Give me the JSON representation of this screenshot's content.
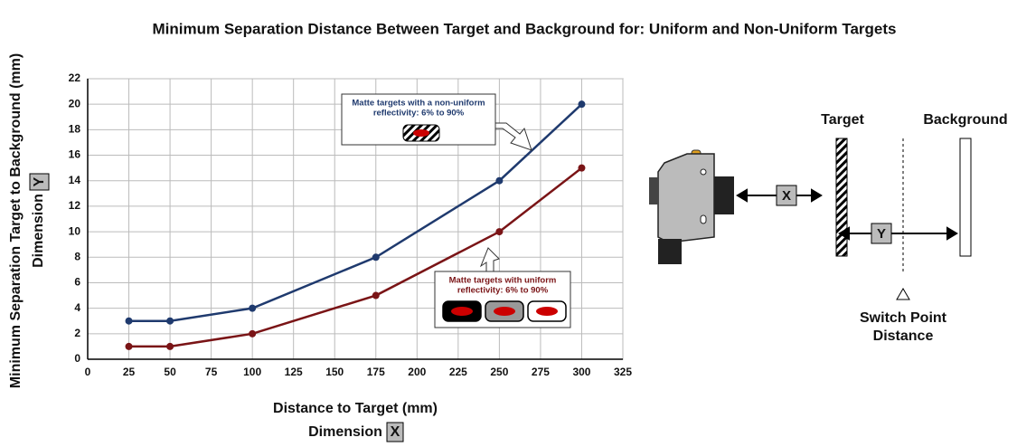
{
  "chart_data": {
    "type": "line",
    "title": "Minimum Separation Distance Between Target and Background for: Uniform and Non-Uniform Targets",
    "xlabel": "Distance to Target (mm)",
    "xlabel2": "Dimension",
    "xlabel_box": "X",
    "ylabel": "Minimum Separation Target to Background (mm)",
    "ylabel2": "Dimension",
    "ylabel_box": "Y",
    "x": [
      25,
      50,
      100,
      175,
      250,
      300
    ],
    "series": [
      {
        "color": "#1f3a6e",
        "values": [
          3,
          3,
          4,
          8,
          14,
          20
        ]
      },
      {
        "color": "#7a1416",
        "values": [
          1,
          1,
          2,
          5,
          10,
          15
        ]
      }
    ],
    "annotations": [
      {
        "lines": [
          "Matte targets with a non-uniform",
          "reflectivity: 6% to 90%"
        ],
        "color": "#1f3a6e"
      },
      {
        "lines": [
          "Matte targets with uniform",
          "reflectivity: 6% to 90%"
        ],
        "color": "#7a1416"
      }
    ],
    "xlim": [
      0,
      325
    ],
    "xticks": [
      0,
      25,
      50,
      75,
      100,
      125,
      150,
      175,
      200,
      225,
      250,
      275,
      300,
      325
    ],
    "ylim": [
      0,
      22
    ],
    "yticks": [
      0,
      2,
      4,
      6,
      8,
      10,
      12,
      14,
      16,
      18,
      20,
      22
    ],
    "grid": true
  },
  "diagram": {
    "target_label": "Target",
    "background_label": "Background",
    "x_marker": "X",
    "y_marker": "Y",
    "switch_point_label": [
      "Switch Point",
      "Distance"
    ]
  }
}
